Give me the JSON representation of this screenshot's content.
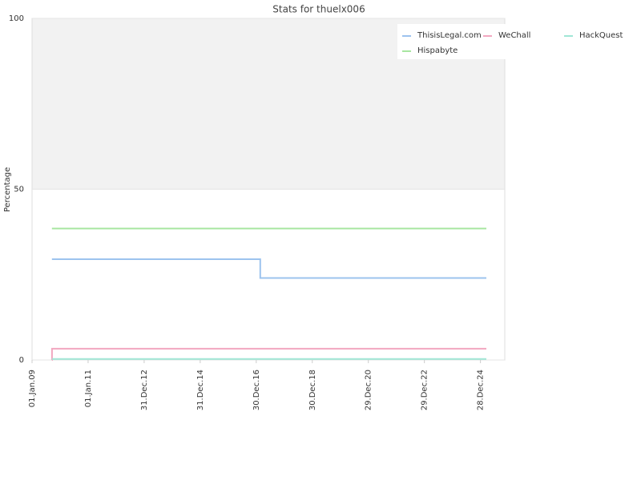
{
  "chart_data": {
    "type": "line",
    "title": "Stats for thuelx006",
    "y_label": "Percentage",
    "xlim": [
      "2009-01-01",
      "2025-11-10"
    ],
    "ylim": [
      0,
      100
    ],
    "xticks": [
      {
        "value": "2009-01-01",
        "label": "01.Jan.09"
      },
      {
        "value": "2011-01-01",
        "label": "01.Jan.11"
      },
      {
        "value": "2012-12-31",
        "label": "31.Dec.12"
      },
      {
        "value": "2014-12-31",
        "label": "31.Dec.14"
      },
      {
        "value": "2016-12-30",
        "label": "30.Dec.16"
      },
      {
        "value": "2018-12-30",
        "label": "30.Dec.18"
      },
      {
        "value": "2020-12-29",
        "label": "29.Dec.20"
      },
      {
        "value": "2022-12-29",
        "label": "29.Dec.22"
      },
      {
        "value": "2024-12-28",
        "label": "28.Dec.24"
      }
    ],
    "yticks": [
      0,
      50,
      100
    ],
    "highlight_band": [
      50,
      100
    ],
    "legend": "upper right",
    "series": [
      {
        "name": "ThisisLegal.com",
        "color": "#9cc3ee",
        "x": [
          "2009-09-17",
          "2017-02-20",
          "2025-03-15"
        ],
        "values": [
          29.5,
          24,
          24
        ]
      },
      {
        "name": "WeChall",
        "color": "#f2a7c0",
        "x": [
          "2009-09-17",
          "2009-09-18",
          "2025-03-15"
        ],
        "values": [
          0,
          3.3,
          3.3
        ]
      },
      {
        "name": "HackQuest",
        "color": "#a0e6d5",
        "x": [
          "2009-09-17",
          "2025-03-15"
        ],
        "values": [
          0.3,
          0.3
        ]
      },
      {
        "name": "Hispabyte",
        "color": "#a8e6a0",
        "x": [
          "2009-09-17",
          "2025-03-15"
        ],
        "values": [
          38.5,
          38.5
        ]
      }
    ]
  }
}
